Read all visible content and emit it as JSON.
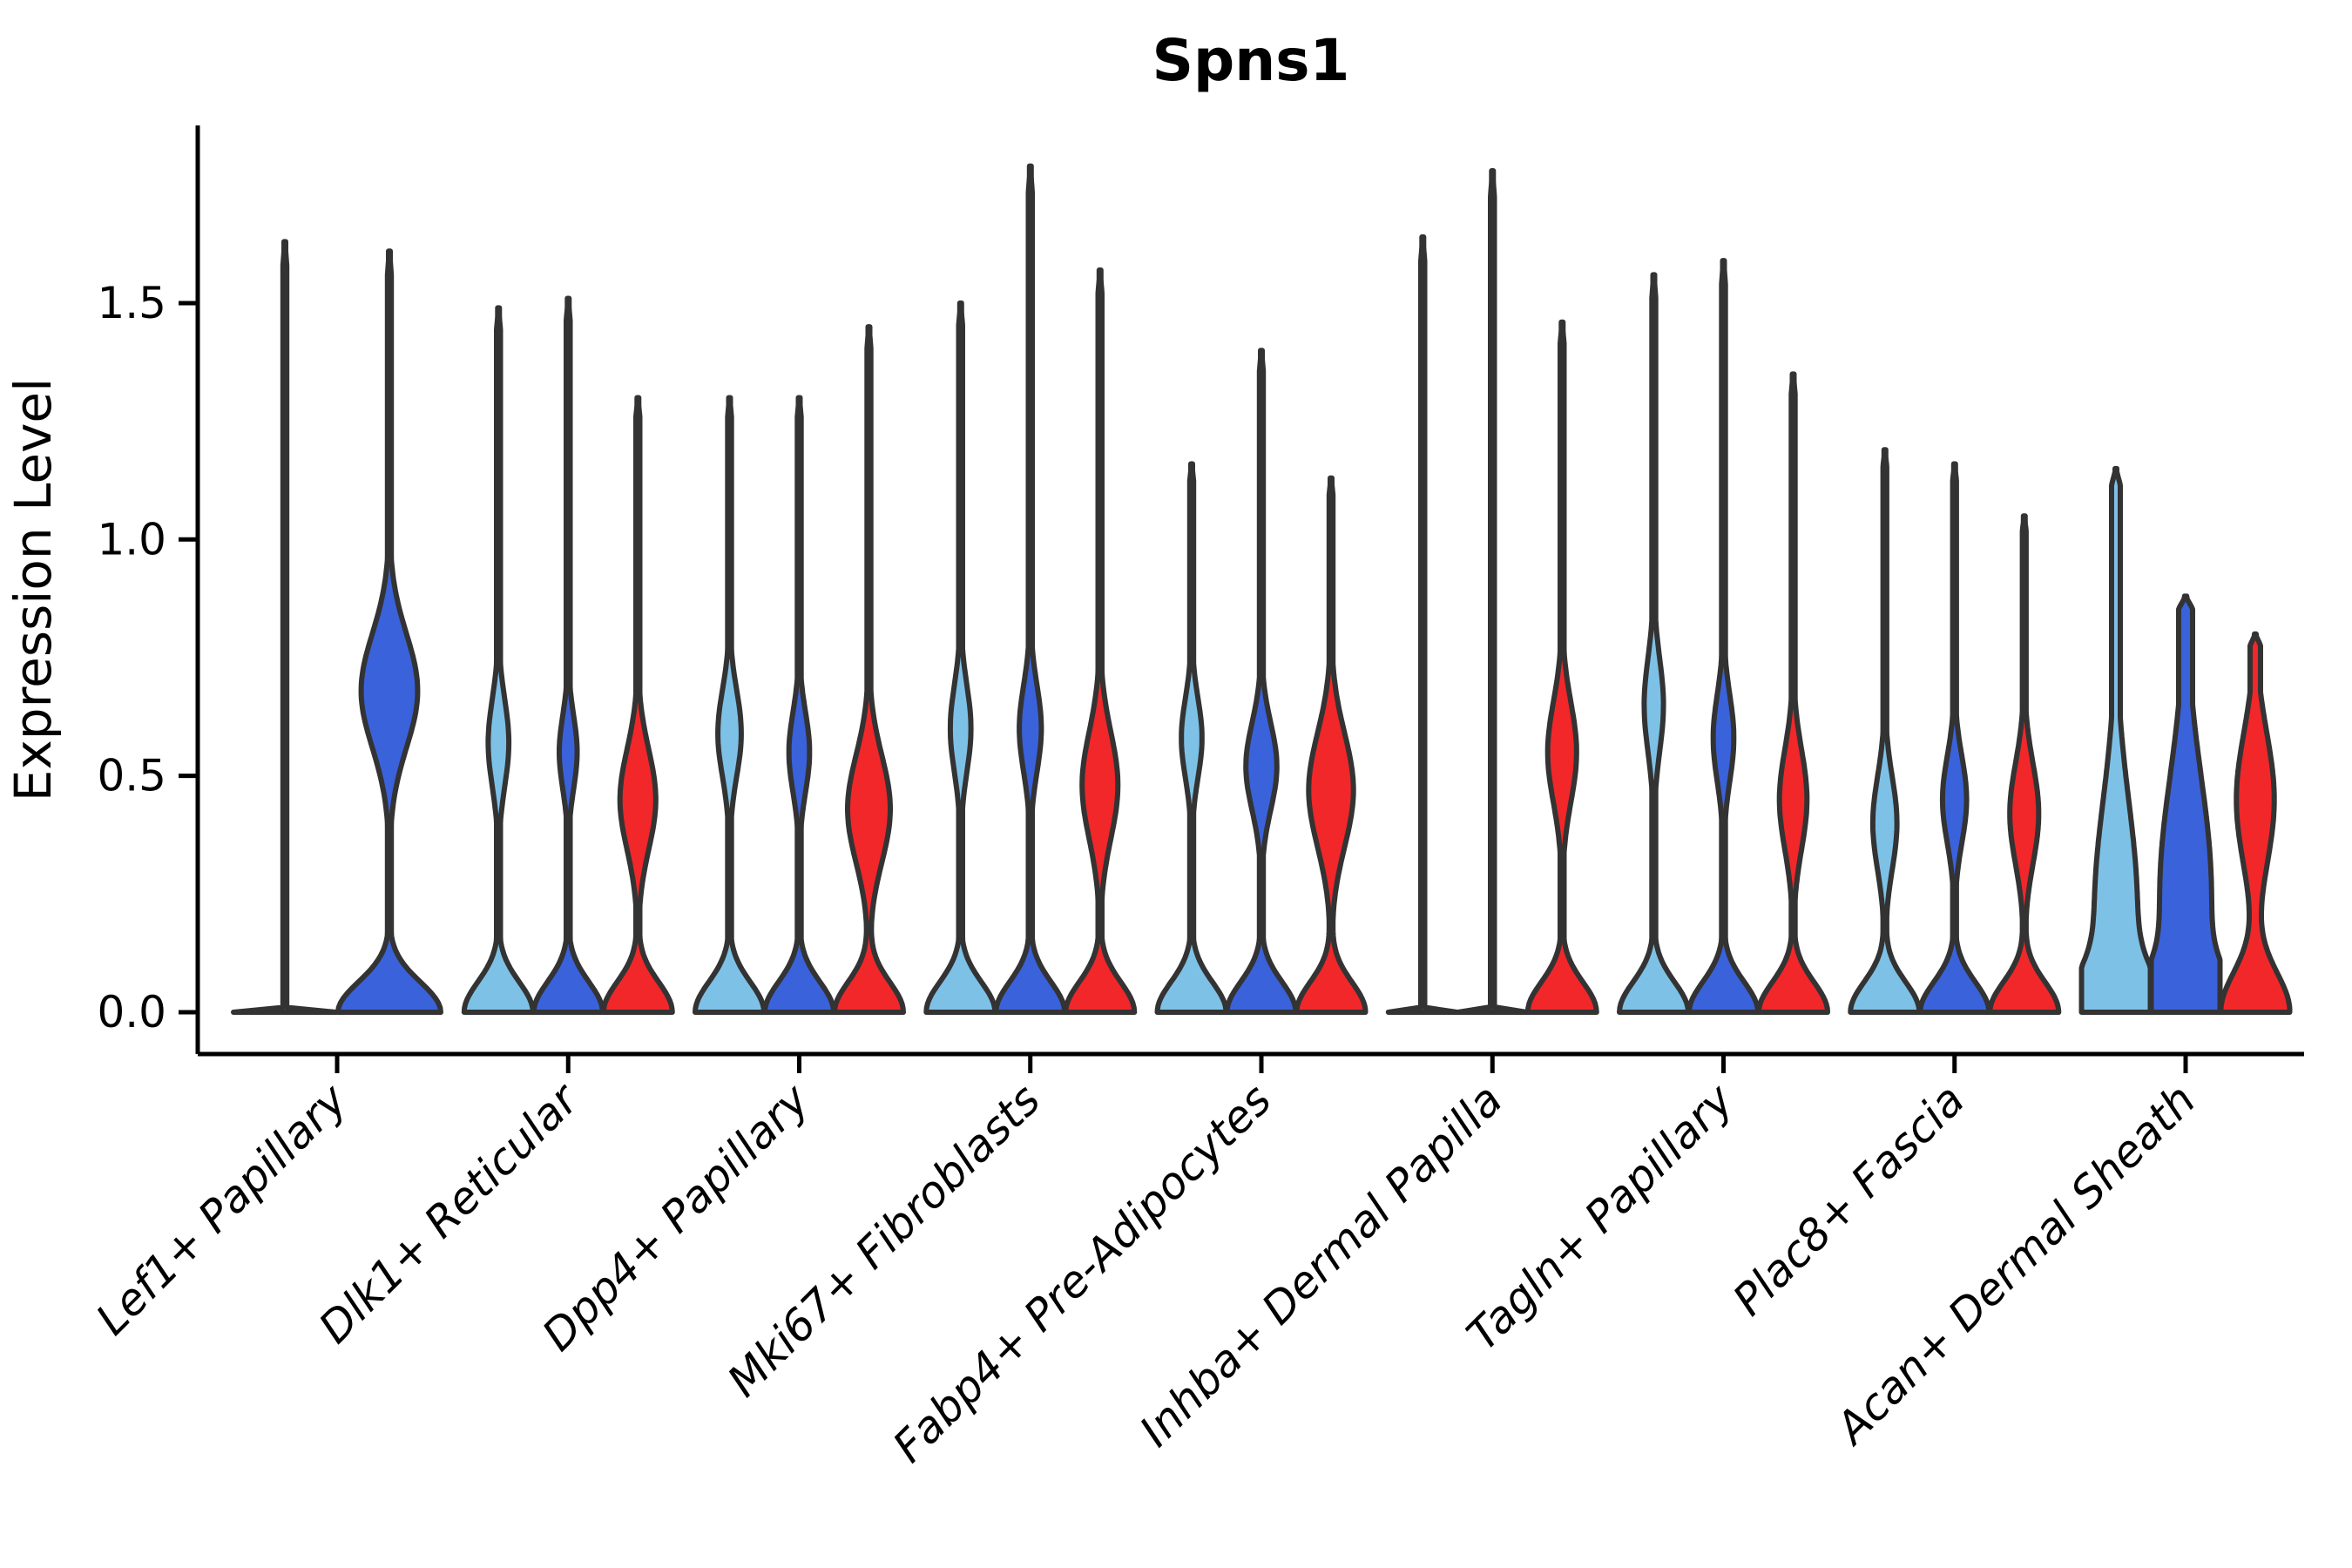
{
  "chart_data": {
    "type": "violin",
    "title": "Spns1",
    "ylabel": "Expression Level",
    "xlabel": "",
    "yticks": [
      "0.0",
      "0.5",
      "1.0",
      "1.5"
    ],
    "ylim": [
      -0.09,
      1.88
    ],
    "grid": false,
    "legend": "none",
    "edge_color": "#333333",
    "axis_color": "#000000",
    "categories": [
      "Lef1+ Papillary",
      "Dlk1+ Reticular",
      "Dpp4+ Papillary",
      "Mki67+ Fibroblasts",
      "Fabp4+ Pre-Adipocytes",
      "Inhba+ Dermal Papilla",
      "Tagln+ Papillary",
      "Plac8+ Fascia",
      "Acan+ Dermal Sheath"
    ],
    "series": [
      {
        "key": "lightblue",
        "color": "#7EC1E7"
      },
      {
        "key": "blue",
        "color": "#3A62DB"
      },
      {
        "key": "red",
        "color": "#F1272A"
      }
    ],
    "groups": [
      {
        "category": "Lef1+ Papillary",
        "violins": [
          {
            "series": "lightblue",
            "max": 1.63,
            "shape": "flat"
          },
          {
            "series": "blue",
            "max": 1.61,
            "shape": "bulged",
            "bulge_center": 0.68,
            "bulge_width": 0.17,
            "bulge_amp": 0.55
          }
        ]
      },
      {
        "category": "Dlk1+ Reticular",
        "violins": [
          {
            "series": "lightblue",
            "max": 1.49,
            "shape": "bulged",
            "bulge_center": 0.57,
            "bulge_width": 0.13,
            "bulge_amp": 0.3
          },
          {
            "series": "blue",
            "max": 1.51,
            "shape": "bulged",
            "bulge_center": 0.55,
            "bulge_width": 0.11,
            "bulge_amp": 0.26
          },
          {
            "series": "red",
            "max": 1.3,
            "shape": "bulged",
            "bulge_center": 0.45,
            "bulge_width": 0.15,
            "bulge_amp": 0.52
          }
        ]
      },
      {
        "category": "Dpp4+ Papillary",
        "violins": [
          {
            "series": "lightblue",
            "max": 1.3,
            "shape": "bulged",
            "bulge_center": 0.59,
            "bulge_width": 0.13,
            "bulge_amp": 0.34
          },
          {
            "series": "blue",
            "max": 1.3,
            "shape": "bulged",
            "bulge_center": 0.55,
            "bulge_width": 0.12,
            "bulge_amp": 0.3
          },
          {
            "series": "red",
            "max": 1.45,
            "shape": "bulged",
            "bulge_center": 0.43,
            "bulge_width": 0.16,
            "bulge_amp": 0.62
          }
        ]
      },
      {
        "category": "Mki67+ Fibroblasts",
        "violins": [
          {
            "series": "lightblue",
            "max": 1.5,
            "shape": "bulged",
            "bulge_center": 0.6,
            "bulge_width": 0.13,
            "bulge_amp": 0.3
          },
          {
            "series": "blue",
            "max": 1.79,
            "shape": "bulged",
            "bulge_center": 0.6,
            "bulge_width": 0.13,
            "bulge_amp": 0.32
          },
          {
            "series": "red",
            "max": 1.57,
            "shape": "bulged",
            "bulge_center": 0.48,
            "bulge_width": 0.16,
            "bulge_amp": 0.52
          }
        ]
      },
      {
        "category": "Fabp4+ Pre-Adipocytes",
        "violins": [
          {
            "series": "lightblue",
            "max": 1.16,
            "shape": "bulged",
            "bulge_center": 0.58,
            "bulge_width": 0.12,
            "bulge_amp": 0.3
          },
          {
            "series": "blue",
            "max": 1.4,
            "shape": "bulged",
            "bulge_center": 0.52,
            "bulge_width": 0.13,
            "bulge_amp": 0.45
          },
          {
            "series": "red",
            "max": 1.13,
            "shape": "bulged",
            "bulge_center": 0.47,
            "bulge_width": 0.17,
            "bulge_amp": 0.65
          }
        ]
      },
      {
        "category": "Inhba+ Dermal Papilla",
        "violins": [
          {
            "series": "lightblue",
            "max": 1.64,
            "shape": "flat"
          },
          {
            "series": "blue",
            "max": 1.78,
            "shape": "flat"
          },
          {
            "series": "red",
            "max": 1.46,
            "shape": "bulged",
            "bulge_center": 0.55,
            "bulge_width": 0.15,
            "bulge_amp": 0.42
          }
        ]
      },
      {
        "category": "Tagln+ Papillary",
        "violins": [
          {
            "series": "lightblue",
            "max": 1.56,
            "shape": "bulged",
            "bulge_center": 0.65,
            "bulge_width": 0.14,
            "bulge_amp": 0.28
          },
          {
            "series": "blue",
            "max": 1.59,
            "shape": "bulged",
            "bulge_center": 0.58,
            "bulge_width": 0.13,
            "bulge_amp": 0.3
          },
          {
            "series": "red",
            "max": 1.35,
            "shape": "bulged",
            "bulge_center": 0.45,
            "bulge_width": 0.15,
            "bulge_amp": 0.4
          }
        ]
      },
      {
        "category": "Plac8+ Fascia",
        "violins": [
          {
            "series": "lightblue",
            "max": 1.19,
            "shape": "bulged",
            "bulge_center": 0.4,
            "bulge_width": 0.14,
            "bulge_amp": 0.35
          },
          {
            "series": "blue",
            "max": 1.16,
            "shape": "bulged",
            "bulge_center": 0.45,
            "bulge_width": 0.13,
            "bulge_amp": 0.35
          },
          {
            "series": "red",
            "max": 1.05,
            "shape": "bulged",
            "bulge_center": 0.42,
            "bulge_width": 0.15,
            "bulge_amp": 0.42
          }
        ]
      },
      {
        "category": "Acan+ Dermal Sheath",
        "violins": [
          {
            "series": "lightblue",
            "max": 1.15,
            "shape": "bulged",
            "bulge_center": 0.22,
            "bulge_width": 0.32,
            "bulge_amp": 0.62,
            "stem": 5,
            "base_width": 0.11
          },
          {
            "series": "blue",
            "max": 0.88,
            "shape": "bulged",
            "bulge_center": 0.25,
            "bulge_width": 0.35,
            "bulge_amp": 0.75,
            "stem": 8,
            "base_width": 0.11
          },
          {
            "series": "red",
            "max": 0.8,
            "shape": "bulged",
            "bulge_center": 0.45,
            "bulge_width": 0.2,
            "bulge_amp": 0.55,
            "stem": 6,
            "base_width": 0.12
          }
        ]
      }
    ]
  }
}
